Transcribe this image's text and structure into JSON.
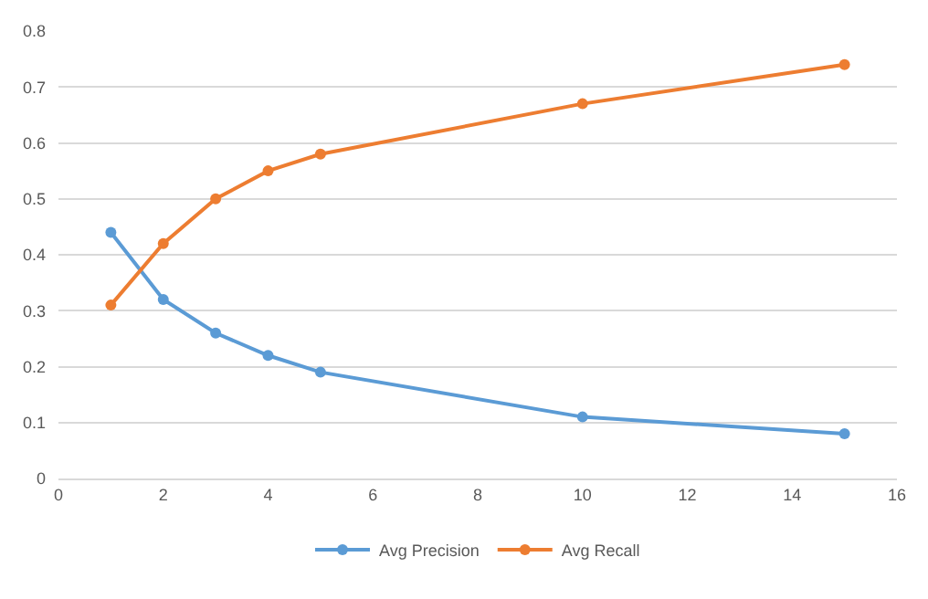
{
  "chart_data": {
    "type": "line",
    "x": [
      1,
      2,
      3,
      4,
      5,
      10,
      15
    ],
    "series": [
      {
        "name": "Avg Precision",
        "color": "#5b9bd5",
        "values": [
          0.44,
          0.32,
          0.26,
          0.22,
          0.19,
          0.11,
          0.08
        ]
      },
      {
        "name": "Avg Recall",
        "color": "#ed7d31",
        "values": [
          0.31,
          0.42,
          0.5,
          0.55,
          0.58,
          0.67,
          0.74
        ]
      }
    ],
    "xlim": [
      0,
      16
    ],
    "xticks": [
      0,
      2,
      4,
      6,
      8,
      10,
      12,
      14,
      16
    ],
    "ylim": [
      0,
      0.8
    ],
    "yticks": [
      {
        "value": 0,
        "label": "0"
      },
      0.1,
      0.2,
      0.3,
      0.4,
      0.5,
      0.6,
      0.7,
      0.8
    ],
    "grid": "y",
    "legend": "bottom",
    "marker": "circle",
    "line_style": "solid"
  }
}
